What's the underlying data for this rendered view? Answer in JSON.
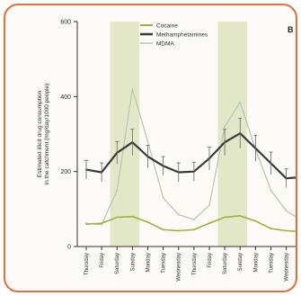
{
  "chart_data": {
    "type": "line",
    "panel_label": "B",
    "ylabel_lines": [
      "Estimated illicit drug consumption",
      "in the catchment (mg/day/1000 people)"
    ],
    "ylim": [
      0,
      600
    ],
    "yticks": [
      "0",
      "200",
      "400",
      "600"
    ],
    "categories": [
      "Thursday",
      "Friday",
      "Saturday",
      "Sunday",
      "Monday",
      "Tuesday",
      "Wednesday",
      "Thursday",
      "Friday",
      "Saturday",
      "Sunday",
      "Monday",
      "Tuesday",
      "Wednesday",
      "Thursday"
    ],
    "weekend_bands": [
      [
        2,
        3
      ],
      [
        9,
        10
      ]
    ],
    "legend": [
      "Cocaine",
      "Methamphetamines",
      "MDMA"
    ],
    "series": [
      {
        "name": "Cocaine",
        "color": "#9ab23c",
        "width": 1.6,
        "values": [
          60,
          62,
          78,
          80,
          65,
          45,
          42,
          45,
          62,
          78,
          82,
          68,
          48,
          42,
          40
        ]
      },
      {
        "name": "Methamphetamines",
        "color": "#3a3a3a",
        "width": 2.2,
        "values": [
          205,
          198,
          250,
          278,
          240,
          215,
          198,
          200,
          235,
          278,
          302,
          262,
          222,
          182,
          185
        ],
        "errors": [
          25,
          25,
          30,
          35,
          30,
          25,
          25,
          25,
          30,
          35,
          40,
          35,
          30,
          25,
          25
        ]
      },
      {
        "name": "MDMA",
        "color": "#b8c4b4",
        "width": 1.2,
        "values": [
          62,
          58,
          150,
          420,
          280,
          130,
          85,
          72,
          110,
          320,
          385,
          260,
          150,
          95,
          70
        ]
      }
    ]
  }
}
